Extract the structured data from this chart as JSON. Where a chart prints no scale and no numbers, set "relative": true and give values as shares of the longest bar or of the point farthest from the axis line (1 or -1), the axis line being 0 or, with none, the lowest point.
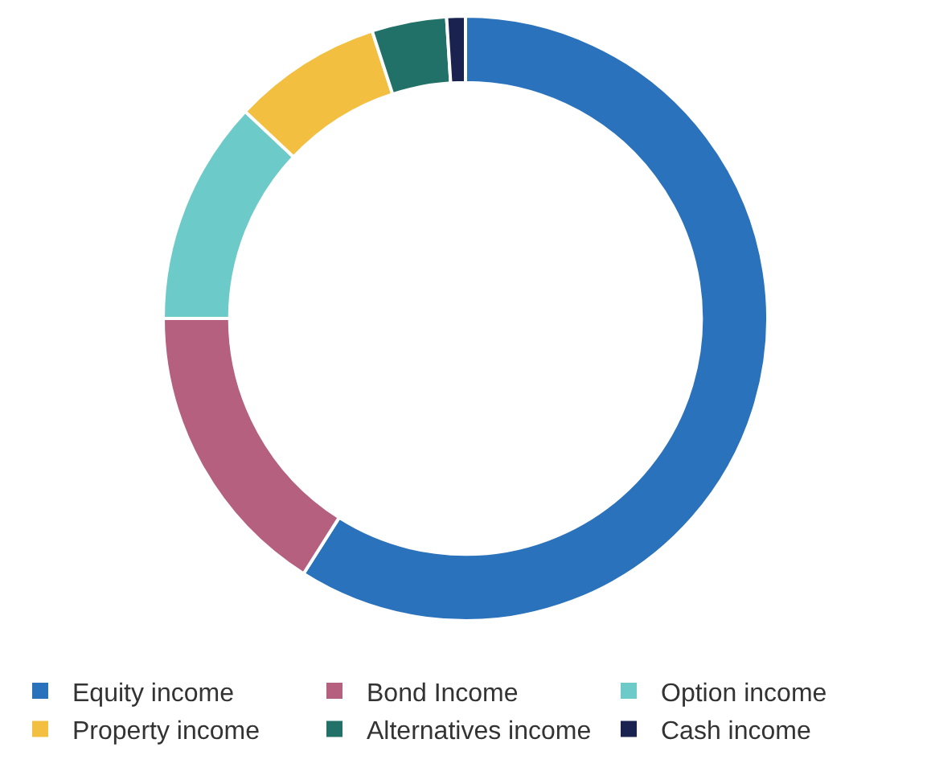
{
  "chart_data": {
    "type": "donut",
    "relative": true,
    "categories": [
      "Equity income",
      "Bond Income",
      "Option income",
      "Property income",
      "Alternatives income",
      "Cash income"
    ],
    "values": [
      59,
      16,
      12,
      8,
      4,
      1
    ],
    "colors": [
      "#2a72bc",
      "#b5607f",
      "#6ccbc9",
      "#f2bf40",
      "#217168",
      "#1a2350"
    ],
    "legend": "bottom"
  }
}
